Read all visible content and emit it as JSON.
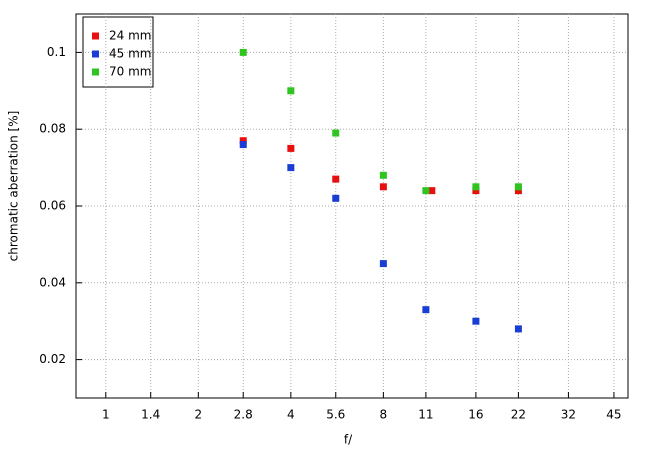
{
  "chart_data": {
    "type": "scatter",
    "xlabel": "f/",
    "ylabel": "chromatic aberration [%]",
    "xscale": "log",
    "grid": true,
    "legend": "upper left",
    "xlim": [
      0.8,
      50
    ],
    "xticks": [
      1,
      1.4,
      2,
      2.8,
      4,
      5.6,
      8,
      11,
      16,
      22,
      32,
      45
    ],
    "ylim": [
      0.01,
      0.11
    ],
    "yticks": [
      0.02,
      0.04,
      0.06,
      0.08,
      0.1
    ],
    "series": [
      {
        "name": "24 mm",
        "color": "#e8100f",
        "x": [
          2.8,
          4,
          5.6,
          8,
          11.5,
          16,
          22
        ],
        "values": [
          0.077,
          0.075,
          0.067,
          0.065,
          0.064,
          0.064,
          0.064
        ]
      },
      {
        "name": "45 mm",
        "color": "#1a3ed4",
        "x": [
          2.8,
          4,
          5.6,
          8,
          11,
          16,
          22
        ],
        "values": [
          0.076,
          0.07,
          0.062,
          0.045,
          0.033,
          0.03,
          0.028
        ]
      },
      {
        "name": "70 mm",
        "color": "#2fc41f",
        "x": [
          2.8,
          4,
          5.6,
          8,
          11,
          16,
          22
        ],
        "values": [
          0.1,
          0.09,
          0.079,
          0.068,
          0.064,
          0.065,
          0.065
        ]
      }
    ]
  }
}
